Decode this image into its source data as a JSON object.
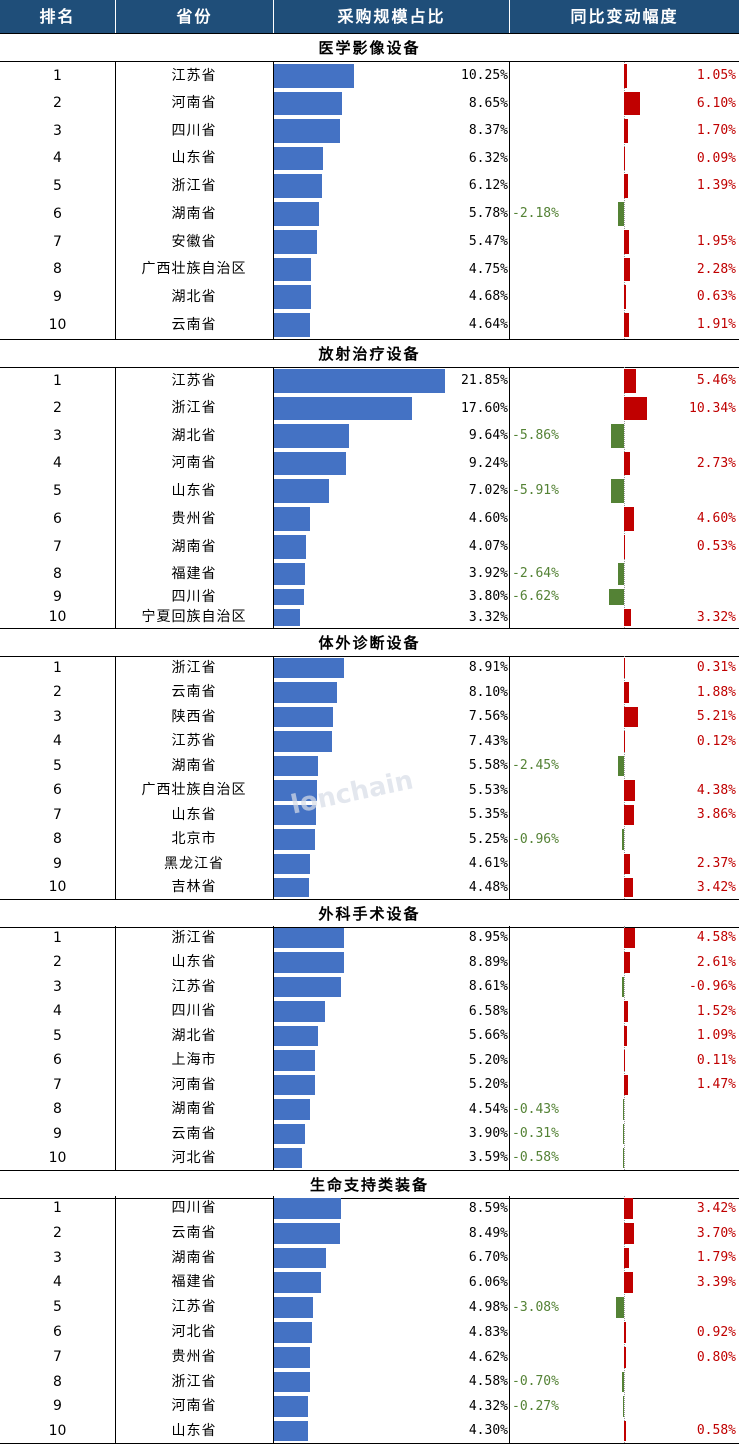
{
  "header": {
    "rank": "排名",
    "province": "省份",
    "share": "采购规模占比",
    "yoy": "同比变动幅度"
  },
  "watermark": "lonchain",
  "sections": [
    {
      "title": "医学影像设备",
      "rows": [
        {
          "rank": "1",
          "province": "江苏省",
          "share": 10.25,
          "share_label": "10.25%",
          "yoy": 1.05,
          "yoy_label": "1.05%"
        },
        {
          "rank": "2",
          "province": "河南省",
          "share": 8.65,
          "share_label": "8.65%",
          "yoy": 6.1,
          "yoy_label": "6.10%"
        },
        {
          "rank": "3",
          "province": "四川省",
          "share": 8.37,
          "share_label": "8.37%",
          "yoy": 1.7,
          "yoy_label": "1.70%"
        },
        {
          "rank": "4",
          "province": "山东省",
          "share": 6.32,
          "share_label": "6.32%",
          "yoy": 0.09,
          "yoy_label": "0.09%"
        },
        {
          "rank": "5",
          "province": "浙江省",
          "share": 6.12,
          "share_label": "6.12%",
          "yoy": 1.39,
          "yoy_label": "1.39%"
        },
        {
          "rank": "6",
          "province": "湖南省",
          "share": 5.78,
          "share_label": "5.78%",
          "yoy": -2.18,
          "yoy_label": "-2.18%"
        },
        {
          "rank": "7",
          "province": "安徽省",
          "share": 5.47,
          "share_label": "5.47%",
          "yoy": 1.95,
          "yoy_label": "1.95%"
        },
        {
          "rank": "8",
          "province": "广西壮族自治区",
          "share": 4.75,
          "share_label": "4.75%",
          "yoy": 2.28,
          "yoy_label": "2.28%"
        },
        {
          "rank": "9",
          "province": "湖北省",
          "share": 4.68,
          "share_label": "4.68%",
          "yoy": 0.63,
          "yoy_label": "0.63%"
        },
        {
          "rank": "10",
          "province": "云南省",
          "share": 4.64,
          "share_label": "4.64%",
          "yoy": 1.91,
          "yoy_label": "1.91%"
        }
      ]
    },
    {
      "title": "放射治疗设备",
      "rows": [
        {
          "rank": "1",
          "province": "江苏省",
          "share": 21.85,
          "share_label": "21.85%",
          "yoy": 5.46,
          "yoy_label": "5.46%"
        },
        {
          "rank": "2",
          "province": "浙江省",
          "share": 17.6,
          "share_label": "17.60%",
          "yoy": 10.34,
          "yoy_label": "10.34%"
        },
        {
          "rank": "3",
          "province": "湖北省",
          "share": 9.64,
          "share_label": "9.64%",
          "yoy": -5.86,
          "yoy_label": "-5.86%"
        },
        {
          "rank": "4",
          "province": "河南省",
          "share": 9.24,
          "share_label": "9.24%",
          "yoy": 2.73,
          "yoy_label": "2.73%"
        },
        {
          "rank": "5",
          "province": "山东省",
          "share": 7.02,
          "share_label": "7.02%",
          "yoy": -5.91,
          "yoy_label": "-5.91%"
        },
        {
          "rank": "6",
          "province": "贵州省",
          "share": 4.6,
          "share_label": "4.60%",
          "yoy": 4.6,
          "yoy_label": "4.60%"
        },
        {
          "rank": "7",
          "province": "湖南省",
          "share": 4.07,
          "share_label": "4.07%",
          "yoy": 0.53,
          "yoy_label": "0.53%"
        },
        {
          "rank": "8",
          "province": "福建省",
          "share": 3.92,
          "share_label": "3.92%",
          "yoy": -2.64,
          "yoy_label": "-2.64%"
        },
        {
          "rank": "9",
          "province": "四川省",
          "share": 3.8,
          "share_label": "3.80%",
          "yoy": -6.62,
          "yoy_label": "-6.62%"
        },
        {
          "rank": "10",
          "province": "宁夏回族自治区",
          "share": 3.32,
          "share_label": "3.32%",
          "yoy": 3.32,
          "yoy_label": "3.32%"
        }
      ]
    },
    {
      "title": "体外诊断设备",
      "rows": [
        {
          "rank": "1",
          "province": "浙江省",
          "share": 8.91,
          "share_label": "8.91%",
          "yoy": 0.31,
          "yoy_label": "0.31%"
        },
        {
          "rank": "2",
          "province": "云南省",
          "share": 8.1,
          "share_label": "8.10%",
          "yoy": 1.88,
          "yoy_label": "1.88%"
        },
        {
          "rank": "3",
          "province": "陕西省",
          "share": 7.56,
          "share_label": "7.56%",
          "yoy": 5.21,
          "yoy_label": "5.21%"
        },
        {
          "rank": "4",
          "province": "江苏省",
          "share": 7.43,
          "share_label": "7.43%",
          "yoy": 0.12,
          "yoy_label": "0.12%"
        },
        {
          "rank": "5",
          "province": "湖南省",
          "share": 5.58,
          "share_label": "5.58%",
          "yoy": -2.45,
          "yoy_label": "-2.45%"
        },
        {
          "rank": "6",
          "province": "广西壮族自治区",
          "share": 5.53,
          "share_label": "5.53%",
          "yoy": 4.38,
          "yoy_label": "4.38%"
        },
        {
          "rank": "7",
          "province": "山东省",
          "share": 5.35,
          "share_label": "5.35%",
          "yoy": 3.86,
          "yoy_label": "3.86%"
        },
        {
          "rank": "8",
          "province": "北京市",
          "share": 5.25,
          "share_label": "5.25%",
          "yoy": -0.96,
          "yoy_label": "-0.96%"
        },
        {
          "rank": "9",
          "province": "黑龙江省",
          "share": 4.61,
          "share_label": "4.61%",
          "yoy": 2.37,
          "yoy_label": "2.37%"
        },
        {
          "rank": "10",
          "province": "吉林省",
          "share": 4.48,
          "share_label": "4.48%",
          "yoy": 3.42,
          "yoy_label": "3.42%"
        }
      ]
    },
    {
      "title": "外科手术设备",
      "rows": [
        {
          "rank": "1",
          "province": "浙江省",
          "share": 8.95,
          "share_label": "8.95%",
          "yoy": 4.58,
          "yoy_label": "4.58%"
        },
        {
          "rank": "2",
          "province": "山东省",
          "share": 8.89,
          "share_label": "8.89%",
          "yoy": 2.61,
          "yoy_label": "2.61%"
        },
        {
          "rank": "3",
          "province": "江苏省",
          "share": 8.61,
          "share_label": "8.61%",
          "yoy": -0.96,
          "yoy_label": "-0.96%",
          "label_right": true
        },
        {
          "rank": "4",
          "province": "四川省",
          "share": 6.58,
          "share_label": "6.58%",
          "yoy": 1.52,
          "yoy_label": "1.52%"
        },
        {
          "rank": "5",
          "province": "湖北省",
          "share": 5.66,
          "share_label": "5.66%",
          "yoy": 1.09,
          "yoy_label": "1.09%"
        },
        {
          "rank": "6",
          "province": "上海市",
          "share": 5.2,
          "share_label": "5.20%",
          "yoy": 0.11,
          "yoy_label": "0.11%"
        },
        {
          "rank": "7",
          "province": "河南省",
          "share": 5.2,
          "share_label": "5.20%",
          "yoy": 1.47,
          "yoy_label": "1.47%"
        },
        {
          "rank": "8",
          "province": "湖南省",
          "share": 4.54,
          "share_label": "4.54%",
          "yoy": -0.43,
          "yoy_label": "-0.43%"
        },
        {
          "rank": "9",
          "province": "云南省",
          "share": 3.9,
          "share_label": "3.90%",
          "yoy": -0.31,
          "yoy_label": "-0.31%"
        },
        {
          "rank": "10",
          "province": "河北省",
          "share": 3.59,
          "share_label": "3.59%",
          "yoy": -0.58,
          "yoy_label": "-0.58%"
        }
      ]
    },
    {
      "title": "生命支持类装备",
      "rows": [
        {
          "rank": "1",
          "province": "四川省",
          "share": 8.59,
          "share_label": "8.59%",
          "yoy": 3.42,
          "yoy_label": "3.42%"
        },
        {
          "rank": "2",
          "province": "云南省",
          "share": 8.49,
          "share_label": "8.49%",
          "yoy": 3.7,
          "yoy_label": "3.70%"
        },
        {
          "rank": "3",
          "province": "湖南省",
          "share": 6.7,
          "share_label": "6.70%",
          "yoy": 1.79,
          "yoy_label": "1.79%"
        },
        {
          "rank": "4",
          "province": "福建省",
          "share": 6.06,
          "share_label": "6.06%",
          "yoy": 3.39,
          "yoy_label": "3.39%"
        },
        {
          "rank": "5",
          "province": "江苏省",
          "share": 4.98,
          "share_label": "4.98%",
          "yoy": -3.08,
          "yoy_label": "-3.08%"
        },
        {
          "rank": "6",
          "province": "河北省",
          "share": 4.83,
          "share_label": "4.83%",
          "yoy": 0.92,
          "yoy_label": "0.92%"
        },
        {
          "rank": "7",
          "province": "贵州省",
          "share": 4.62,
          "share_label": "4.62%",
          "yoy": 0.8,
          "yoy_label": "0.80%"
        },
        {
          "rank": "8",
          "province": "浙江省",
          "share": 4.58,
          "share_label": "4.58%",
          "yoy": -0.7,
          "yoy_label": "-0.70%"
        },
        {
          "rank": "9",
          "province": "河南省",
          "share": 4.32,
          "share_label": "4.32%",
          "yoy": -0.27,
          "yoy_label": "-0.27%"
        },
        {
          "rank": "10",
          "province": "山东省",
          "share": 4.3,
          "share_label": "4.30%",
          "yoy": 0.58,
          "yoy_label": "0.58%"
        }
      ]
    }
  ]
}
